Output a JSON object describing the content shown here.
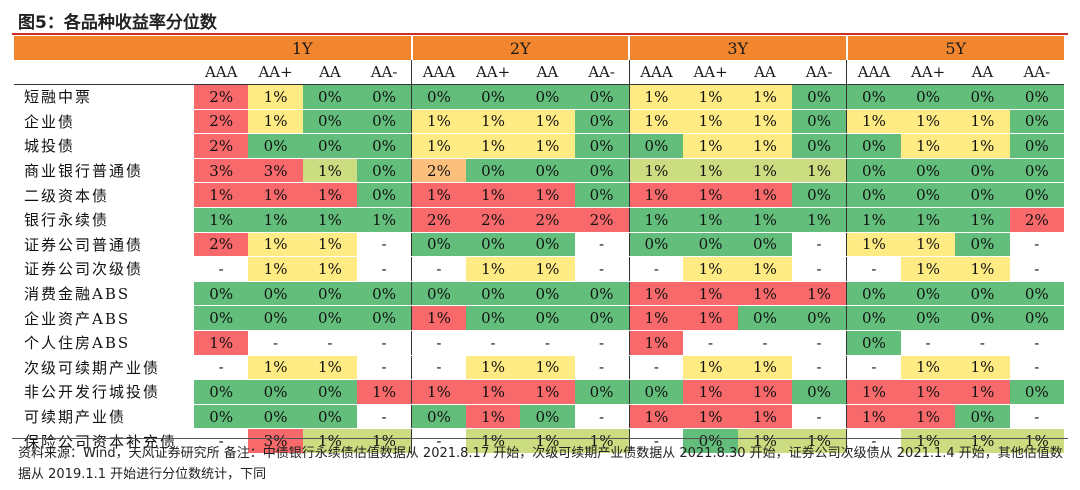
{
  "title": "图5：各品种收益率分位数",
  "source_note": "资料来源：Wind，天风证券研究所  备注：中债银行永续债估值数据从 2021.8.17 开始，次级可续期产业债数据从 2021.8.30 开始，证券公司次级债从 2021.1.4 开始，其他估值数据从 2019.1.1 开始进行分位数统计，下同",
  "chart_data": {
    "type": "heatmap",
    "years": [
      "1Y",
      "2Y",
      "3Y",
      "5Y"
    ],
    "ratings": [
      "AAA",
      "AA+",
      "AA",
      "AA-"
    ],
    "colors": {
      "high": "#f8696b",
      "mid": "#ffeb84",
      "low": "#63be7b",
      "na": "#ffffff"
    },
    "rows": [
      {
        "name": "短融中票",
        "values": [
          [
            2,
            1,
            0,
            0
          ],
          [
            0,
            0,
            0,
            0
          ],
          [
            1,
            1,
            1,
            0
          ],
          [
            0,
            0,
            0,
            0
          ]
        ]
      },
      {
        "name": "企业债",
        "values": [
          [
            2,
            1,
            0,
            0
          ],
          [
            1,
            1,
            1,
            0
          ],
          [
            1,
            1,
            1,
            0
          ],
          [
            1,
            1,
            1,
            0
          ]
        ]
      },
      {
        "name": "城投债",
        "values": [
          [
            2,
            0,
            0,
            0
          ],
          [
            1,
            1,
            1,
            0
          ],
          [
            0,
            1,
            1,
            0
          ],
          [
            0,
            1,
            1,
            0
          ]
        ]
      },
      {
        "name": "商业银行普通债",
        "values": [
          [
            3,
            3,
            1,
            0
          ],
          [
            2,
            0,
            0,
            0
          ],
          [
            1,
            1,
            1,
            1
          ],
          [
            0,
            0,
            0,
            0
          ]
        ]
      },
      {
        "name": "二级资本债",
        "values": [
          [
            1,
            1,
            1,
            0
          ],
          [
            1,
            1,
            1,
            0
          ],
          [
            1,
            1,
            1,
            0
          ],
          [
            0,
            0,
            0,
            0
          ]
        ]
      },
      {
        "name": "银行永续债",
        "values": [
          [
            1,
            1,
            1,
            1
          ],
          [
            2,
            2,
            2,
            2
          ],
          [
            1,
            1,
            1,
            1
          ],
          [
            1,
            1,
            1,
            2
          ]
        ]
      },
      {
        "name": "证券公司普通债",
        "values": [
          [
            2,
            1,
            1,
            null
          ],
          [
            0,
            0,
            0,
            null
          ],
          [
            0,
            0,
            0,
            null
          ],
          [
            1,
            1,
            0,
            null
          ]
        ]
      },
      {
        "name": "证券公司次级债",
        "values": [
          [
            null,
            1,
            1,
            null
          ],
          [
            null,
            1,
            1,
            null
          ],
          [
            null,
            1,
            1,
            null
          ],
          [
            null,
            1,
            1,
            null
          ]
        ]
      },
      {
        "name": "消费金融ABS",
        "values": [
          [
            0,
            0,
            0,
            0
          ],
          [
            0,
            0,
            0,
            0
          ],
          [
            1,
            1,
            1,
            1
          ],
          [
            0,
            0,
            0,
            0
          ]
        ]
      },
      {
        "name": "企业资产ABS",
        "values": [
          [
            0,
            0,
            0,
            0
          ],
          [
            1,
            0,
            0,
            0
          ],
          [
            1,
            1,
            0,
            0
          ],
          [
            0,
            0,
            0,
            0
          ]
        ]
      },
      {
        "name": "个人住房ABS",
        "values": [
          [
            1,
            null,
            null,
            null
          ],
          [
            null,
            null,
            null,
            null
          ],
          [
            1,
            null,
            null,
            null
          ],
          [
            0,
            null,
            null,
            null
          ]
        ]
      },
      {
        "name": "次级可续期产业债",
        "values": [
          [
            null,
            1,
            1,
            null
          ],
          [
            null,
            1,
            1,
            null
          ],
          [
            null,
            1,
            1,
            null
          ],
          [
            null,
            1,
            1,
            null
          ]
        ]
      },
      {
        "name": "非公开发行城投债",
        "values": [
          [
            0,
            0,
            0,
            1
          ],
          [
            1,
            1,
            1,
            0
          ],
          [
            0,
            1,
            1,
            0
          ],
          [
            1,
            1,
            1,
            0
          ]
        ]
      },
      {
        "name": "可续期产业债",
        "values": [
          [
            0,
            0,
            0,
            null
          ],
          [
            0,
            1,
            0,
            null
          ],
          [
            1,
            1,
            1,
            null
          ],
          [
            1,
            1,
            0,
            null
          ]
        ]
      },
      {
        "name": "保险公司资本补充债",
        "values": [
          [
            null,
            3,
            1,
            1
          ],
          [
            null,
            1,
            1,
            1
          ],
          [
            null,
            0,
            1,
            1
          ],
          [
            null,
            1,
            1,
            1
          ]
        ]
      }
    ]
  }
}
